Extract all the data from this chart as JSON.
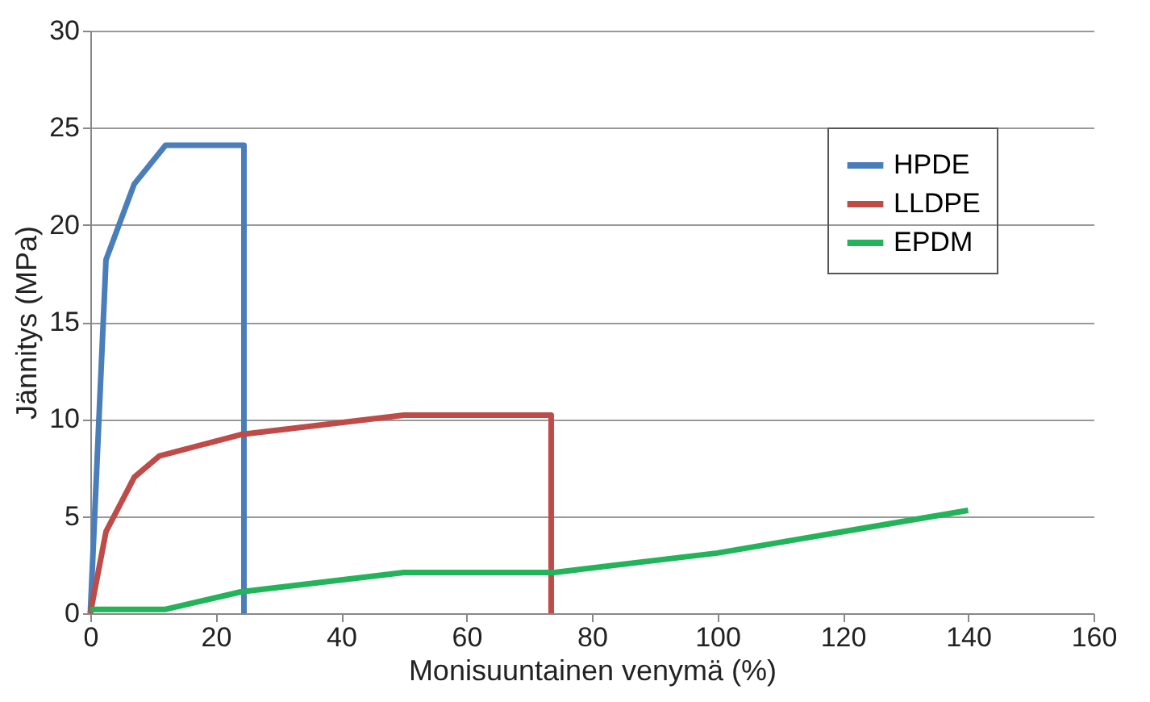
{
  "chart_data": {
    "type": "line",
    "xlabel": "Monisuuntainen venymä (%)",
    "ylabel": "Jännitys (MPa)",
    "xlim": [
      0,
      160
    ],
    "xticks": [
      0,
      20,
      40,
      60,
      80,
      100,
      120,
      140,
      160
    ],
    "ylim": [
      0,
      30
    ],
    "yticks": [
      0,
      5,
      10,
      15,
      20,
      25,
      30
    ],
    "grid": "y",
    "legend": "top right",
    "marker": "none",
    "line_style": "solid",
    "series": [
      {
        "name": "HPDE",
        "color": "#4a7ebb",
        "x": [
          0,
          2.5,
          7,
          12,
          24.5,
          24.5
        ],
        "values": [
          0,
          18.2,
          22.1,
          24.1,
          24.1,
          0
        ]
      },
      {
        "name": "LLDPE",
        "color": "#be4b48",
        "x": [
          0,
          2.5,
          7,
          11,
          24,
          50,
          73.5,
          73.5
        ],
        "values": [
          0,
          4.2,
          7,
          8.1,
          9.2,
          10.2,
          10.2,
          0
        ]
      },
      {
        "name": "EPDM",
        "color": "#23b35a",
        "x": [
          0,
          12,
          24,
          50,
          74,
          100,
          140
        ],
        "values": [
          0.2,
          0.2,
          1.1,
          2.1,
          2.1,
          3.1,
          5.3
        ]
      }
    ]
  }
}
